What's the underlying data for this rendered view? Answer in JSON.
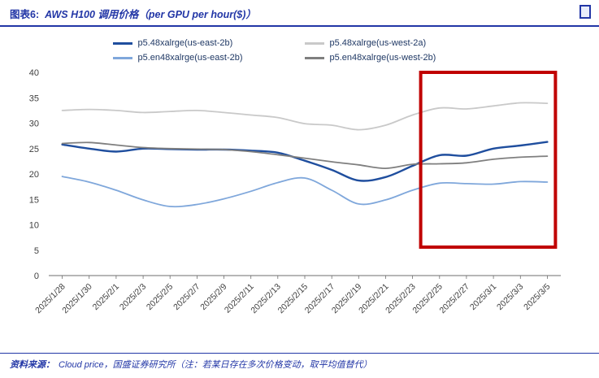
{
  "header": {
    "title_prefix": "图表6:",
    "title_main": "AWS H100 调用价格（per GPU per hour($)）"
  },
  "footer": {
    "source_prefix": "资料来源：",
    "source_main": "Cloud price，国盛证券研究所（注：若某日存在多次价格变动，取平均值替代）"
  },
  "colors": {
    "title_blue": "#2236A6",
    "highlight_red": "#C00000",
    "axis_text": "#3F3F3F",
    "axis_line": "#6E6E6E"
  },
  "chart_data": {
    "type": "line",
    "title": "AWS H100 调用价格（per GPU per hour($)）",
    "xlabel": "",
    "ylabel": "",
    "ylim": [
      0,
      40
    ],
    "ytick_step": 5,
    "grid": false,
    "legend_position": "top",
    "x": [
      "2025/1/28",
      "2025/1/30",
      "2025/2/1",
      "2025/2/3",
      "2025/2/5",
      "2025/2/7",
      "2025/2/9",
      "2025/2/11",
      "2025/2/13",
      "2025/2/15",
      "2025/2/17",
      "2025/2/19",
      "2025/2/21",
      "2025/2/23",
      "2025/2/25",
      "2025/2/27",
      "2025/3/1",
      "2025/3/3",
      "2025/3/5"
    ],
    "series": [
      {
        "name": "p5.48xalrge(us-east-2b)",
        "color": "#1F4E9E",
        "values": [
          25.8,
          25.0,
          24.4,
          25.0,
          24.9,
          24.8,
          24.8,
          24.6,
          24.2,
          22.6,
          20.8,
          18.7,
          19.4,
          21.6,
          23.7,
          23.6,
          25.0,
          25.6,
          26.3
        ]
      },
      {
        "name": "p5.48xalrge(us-west-2a)",
        "color": "#C9C9C9",
        "values": [
          32.5,
          32.7,
          32.5,
          32.1,
          32.3,
          32.5,
          32.1,
          31.6,
          31.1,
          29.9,
          29.6,
          28.7,
          29.6,
          31.6,
          33.0,
          32.8,
          33.4,
          34.0,
          33.9
        ]
      },
      {
        "name": "p5.en48xalrge(us-east-2b)",
        "color": "#7FA7DB",
        "values": [
          19.5,
          18.4,
          16.8,
          14.9,
          13.6,
          14.0,
          15.1,
          16.6,
          18.3,
          19.2,
          16.8,
          14.1,
          14.9,
          16.8,
          18.2,
          18.1,
          18.0,
          18.5,
          18.4
        ]
      },
      {
        "name": "p5.en48xalrge(us-west-2b)",
        "color": "#7F7F7F",
        "values": [
          26.0,
          26.2,
          25.7,
          25.2,
          25.0,
          24.9,
          24.8,
          24.4,
          23.8,
          23.1,
          22.4,
          21.8,
          21.1,
          21.9,
          22.0,
          22.2,
          22.9,
          23.3,
          23.5
        ]
      }
    ],
    "highlight_box": {
      "x_start_index": 13.3,
      "x_end_index": 18.3,
      "y_min": 5.6,
      "y_max": 40,
      "color": "#C00000"
    }
  }
}
